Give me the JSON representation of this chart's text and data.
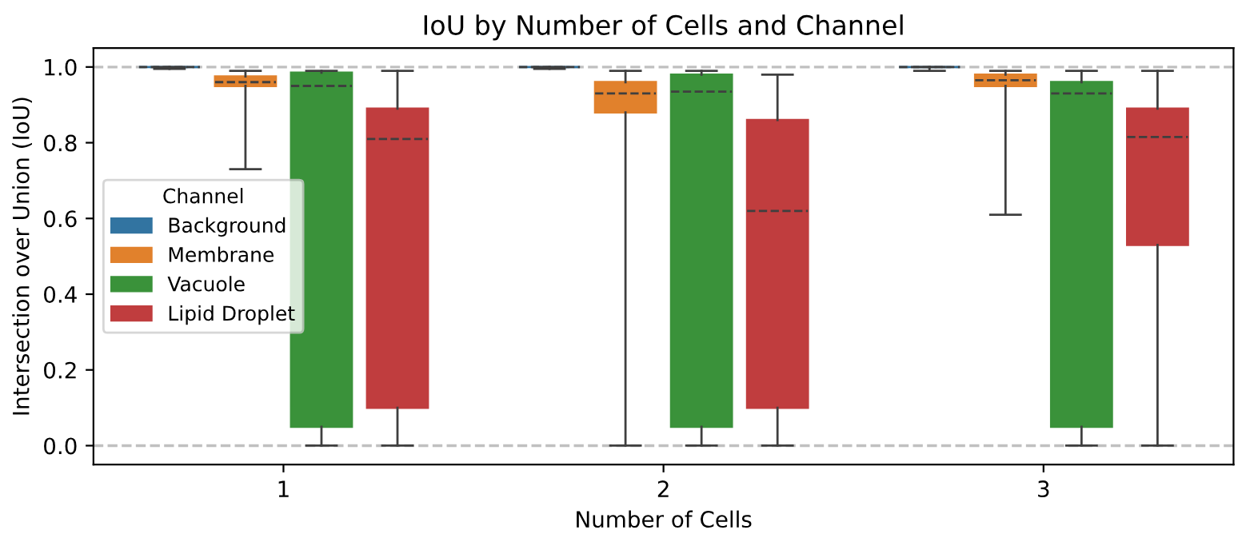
{
  "chart_data": {
    "type": "box",
    "title": "IoU by Number of Cells and Channel",
    "xlabel": "Number of Cells",
    "ylabel": "Intersection over Union (IoU)",
    "legend_title": "Channel",
    "legend": "center left",
    "categories": [
      "1",
      "2",
      "3"
    ],
    "series": [
      {
        "name": "Background",
        "color": "#3274a1",
        "boxes": [
          {
            "low": 0.995,
            "q1": 1.0,
            "median": 1.0,
            "q3": 1.0,
            "high": 1.0
          },
          {
            "low": 0.995,
            "q1": 1.0,
            "median": 1.0,
            "q3": 1.0,
            "high": 1.0
          },
          {
            "low": 0.99,
            "q1": 1.0,
            "median": 1.0,
            "q3": 1.0,
            "high": 1.0
          }
        ]
      },
      {
        "name": "Membrane",
        "color": "#e1812c",
        "boxes": [
          {
            "low": 0.73,
            "q1": 0.95,
            "median": 0.96,
            "q3": 0.975,
            "high": 0.99
          },
          {
            "low": 0.0,
            "q1": 0.88,
            "median": 0.93,
            "q3": 0.96,
            "high": 0.99
          },
          {
            "low": 0.61,
            "q1": 0.95,
            "median": 0.965,
            "q3": 0.98,
            "high": 0.99
          }
        ]
      },
      {
        "name": "Vacuole",
        "color": "#3a923a",
        "boxes": [
          {
            "low": 0.0,
            "q1": 0.05,
            "median": 0.95,
            "q3": 0.985,
            "high": 0.99
          },
          {
            "low": 0.0,
            "q1": 0.05,
            "median": 0.935,
            "q3": 0.98,
            "high": 0.99
          },
          {
            "low": 0.0,
            "q1": 0.05,
            "median": 0.93,
            "q3": 0.96,
            "high": 0.99
          }
        ]
      },
      {
        "name": "Lipid Droplet",
        "color": "#c03d3e",
        "boxes": [
          {
            "low": 0.0,
            "q1": 0.1,
            "median": 0.81,
            "q3": 0.89,
            "high": 0.99
          },
          {
            "low": 0.0,
            "q1": 0.1,
            "median": 0.62,
            "q3": 0.86,
            "high": 0.98
          },
          {
            "low": 0.0,
            "q1": 0.53,
            "median": 0.815,
            "q3": 0.89,
            "high": 0.99
          }
        ]
      }
    ],
    "ylim": [
      -0.05,
      1.05
    ],
    "yticks": [
      {
        "value": 0,
        "label": "0.0"
      },
      {
        "value": 0.2,
        "label": "0.2"
      },
      {
        "value": 0.4,
        "label": "0.4"
      },
      {
        "value": 0.6,
        "label": "0.6"
      },
      {
        "value": 0.8,
        "label": "0.8"
      },
      {
        "value": 1,
        "label": "1.0"
      }
    ],
    "ref_lines": [
      {
        "axis": "y",
        "value": 0,
        "label": null,
        "color": "#c0c0c0",
        "line_style": "dashed"
      },
      {
        "axis": "y",
        "value": 1,
        "label": null,
        "color": "#c0c0c0",
        "line_style": "dashed"
      }
    ]
  }
}
